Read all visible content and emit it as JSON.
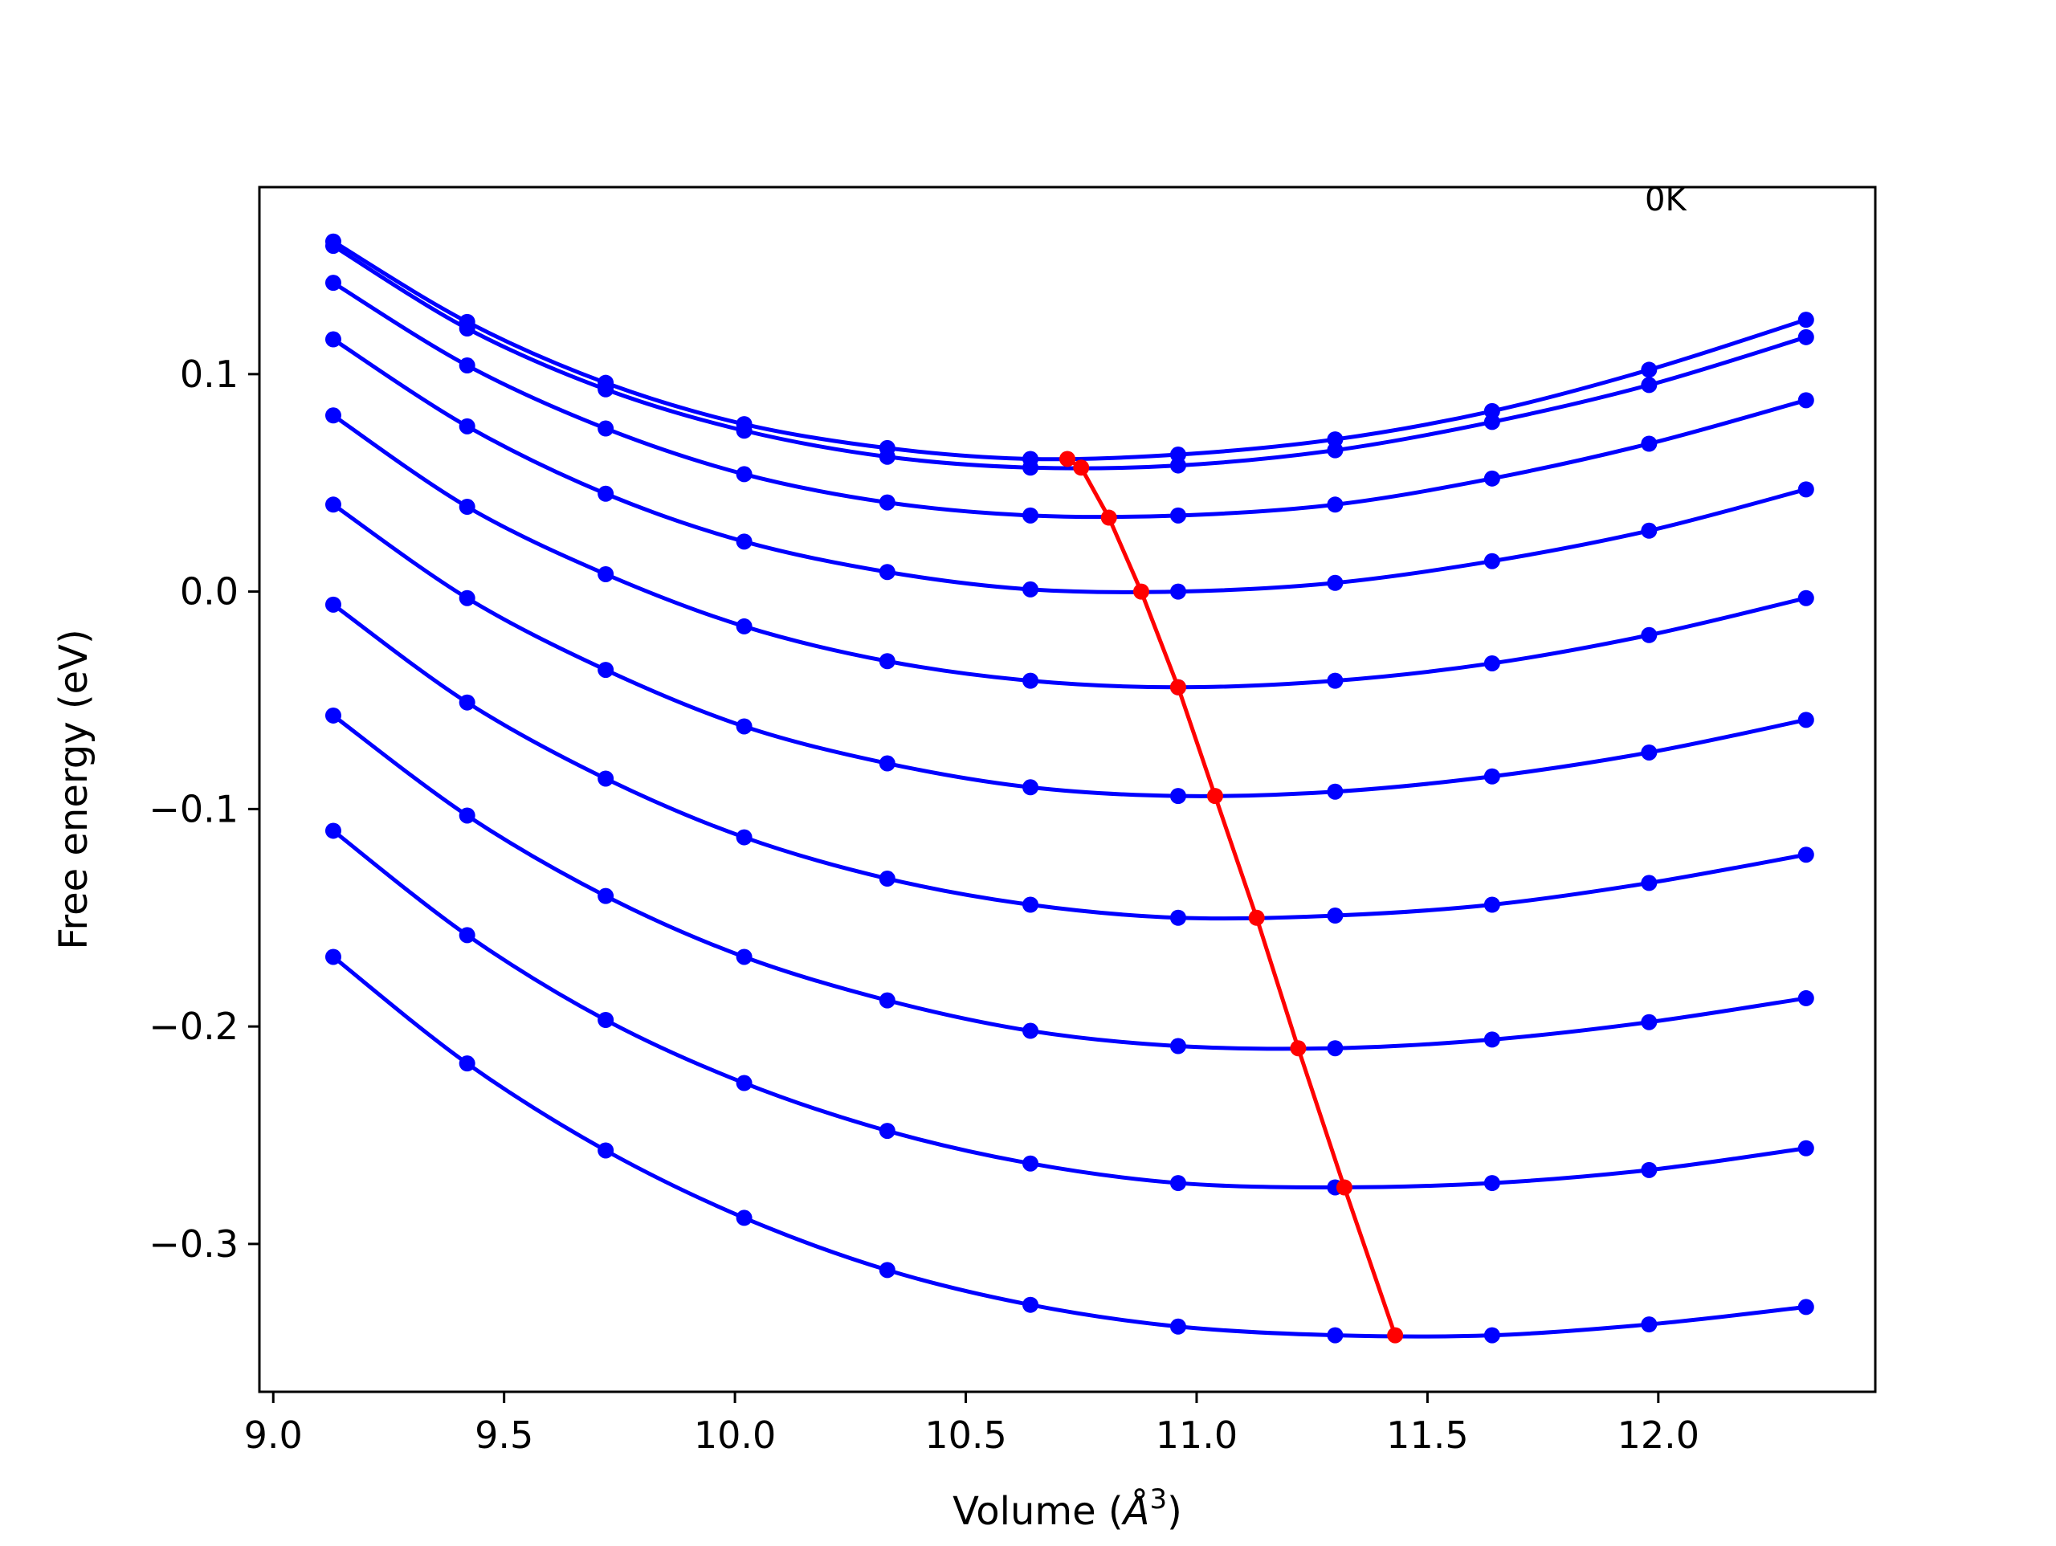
{
  "chart_data": {
    "type": "line",
    "title": "",
    "xlabel": "Volume (Å³)",
    "xlabel_parts": {
      "text": "Volume (",
      "symbol": "Å",
      "sup": "3",
      "close": ")"
    },
    "ylabel": "Free energy (eV)",
    "annotation": "0K",
    "xlim": [
      8.97,
      12.47
    ],
    "ylim": [
      -0.368,
      0.186
    ],
    "x_ticks": [
      9.0,
      9.5,
      10.0,
      10.5,
      11.0,
      11.5,
      12.0
    ],
    "x_tick_labels": [
      "9.0",
      "9.5",
      "10.0",
      "10.5",
      "11.0",
      "11.5",
      "12.0"
    ],
    "y_ticks": [
      -0.3,
      -0.2,
      -0.1,
      0.0,
      0.1
    ],
    "y_tick_labels": [
      "−0.3",
      "−0.2",
      "−0.1",
      "0.0",
      "0.1"
    ],
    "grid": false,
    "legend": false,
    "colors": {
      "series": "#0000ff",
      "minima": "#ff0000"
    },
    "x": [
      9.13,
      9.42,
      9.72,
      10.02,
      10.33,
      10.64,
      10.96,
      11.3,
      11.64,
      11.98,
      12.32
    ],
    "series": [
      {
        "values": [
          0.161,
          0.124,
          0.096,
          0.077,
          0.066,
          0.061,
          0.063,
          0.07,
          0.083,
          0.102,
          0.125
        ]
      },
      {
        "values": [
          0.159,
          0.121,
          0.093,
          0.074,
          0.062,
          0.057,
          0.058,
          0.065,
          0.078,
          0.095,
          0.117
        ]
      },
      {
        "values": [
          0.142,
          0.104,
          0.075,
          0.054,
          0.041,
          0.035,
          0.035,
          0.04,
          0.052,
          0.068,
          0.088
        ]
      },
      {
        "values": [
          0.116,
          0.076,
          0.045,
          0.023,
          0.009,
          0.001,
          0.0,
          0.004,
          0.014,
          0.028,
          0.047
        ]
      },
      {
        "values": [
          0.081,
          0.039,
          0.008,
          -0.016,
          -0.032,
          -0.041,
          -0.044,
          -0.041,
          -0.033,
          -0.02,
          -0.003
        ]
      },
      {
        "values": [
          0.04,
          -0.003,
          -0.036,
          -0.062,
          -0.079,
          -0.09,
          -0.094,
          -0.092,
          -0.085,
          -0.074,
          -0.059
        ]
      },
      {
        "values": [
          -0.006,
          -0.051,
          -0.086,
          -0.113,
          -0.132,
          -0.144,
          -0.15,
          -0.149,
          -0.144,
          -0.134,
          -0.121
        ]
      },
      {
        "values": [
          -0.057,
          -0.103,
          -0.14,
          -0.168,
          -0.188,
          -0.202,
          -0.209,
          -0.21,
          -0.206,
          -0.198,
          -0.187
        ]
      },
      {
        "values": [
          -0.11,
          -0.158,
          -0.197,
          -0.226,
          -0.248,
          -0.263,
          -0.272,
          -0.274,
          -0.272,
          -0.266,
          -0.256
        ]
      },
      {
        "values": [
          -0.168,
          -0.217,
          -0.257,
          -0.288,
          -0.312,
          -0.328,
          -0.338,
          -0.342,
          -0.342,
          -0.337,
          -0.329
        ]
      }
    ],
    "minima": {
      "x": [
        10.72,
        10.75,
        10.81,
        10.88,
        10.96,
        11.04,
        11.13,
        11.22,
        11.32,
        11.43
      ],
      "y": [
        0.061,
        0.057,
        0.034,
        0.0,
        -0.044,
        -0.094,
        -0.15,
        -0.21,
        -0.274,
        -0.342
      ]
    }
  }
}
